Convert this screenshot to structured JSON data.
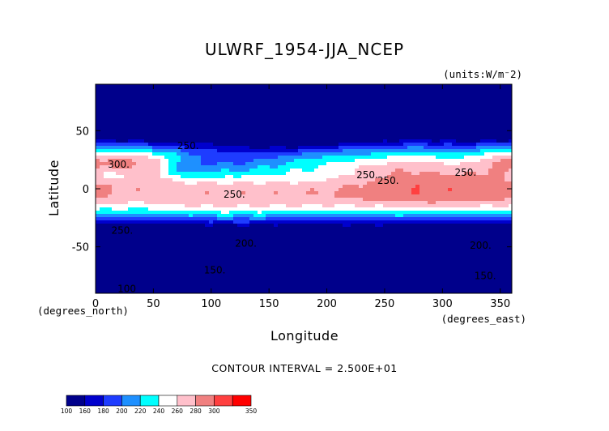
{
  "chart_data": {
    "type": "heatmap",
    "title": "ULWRF_1954-JJA_NCEP",
    "units": "(units:W/m^2)",
    "units_display": "(units:W/m⁻2)",
    "xlabel": "Longitude",
    "ylabel": "Latitude",
    "x_unit_label": "(degrees_east)",
    "y_unit_label": "(degrees_north)",
    "xlim": [
      0,
      360
    ],
    "ylim": [
      -90,
      90
    ],
    "x_ticks": [
      "0",
      "50",
      "100",
      "150",
      "200",
      "250",
      "300",
      "350"
    ],
    "x_tick_values": [
      0,
      50,
      100,
      150,
      200,
      250,
      300,
      350
    ],
    "y_ticks": [
      "50",
      "0",
      "-50"
    ],
    "y_tick_values": [
      50,
      0,
      -50
    ],
    "contour_interval_text": "CONTOUR INTERVAL = 2.500E+01",
    "colorbar_levels": [
      "100",
      "160",
      "180",
      "200",
      "220",
      "240",
      "260",
      "280",
      "300",
      "350"
    ],
    "colorbar_colors": [
      "#00008b",
      "#0000cd",
      "#1e3cff",
      "#1e90ff",
      "#00ffff",
      "#ffffff",
      "#ffc0cb",
      "#f08080",
      "#ff4040",
      "#ff0000"
    ],
    "contour_labels": [
      {
        "text": "250.",
        "x": 80,
        "y": 37
      },
      {
        "text": "300.",
        "x": 20,
        "y": 21
      },
      {
        "text": "250.",
        "x": 120,
        "y": -5
      },
      {
        "text": "250.",
        "x": 23,
        "y": -36
      },
      {
        "text": "200.",
        "x": 130,
        "y": -47
      },
      {
        "text": "250.",
        "x": 235,
        "y": 12
      },
      {
        "text": "250.",
        "x": 253,
        "y": 7
      },
      {
        "text": "250.",
        "x": 320,
        "y": 14
      },
      {
        "text": "200.",
        "x": 333,
        "y": -49
      },
      {
        "text": "150.",
        "x": 103,
        "y": -70
      },
      {
        "text": "150.",
        "x": 337,
        "y": -75
      },
      {
        "text": "100",
        "x": 27,
        "y": -86
      }
    ],
    "grid": false
  }
}
